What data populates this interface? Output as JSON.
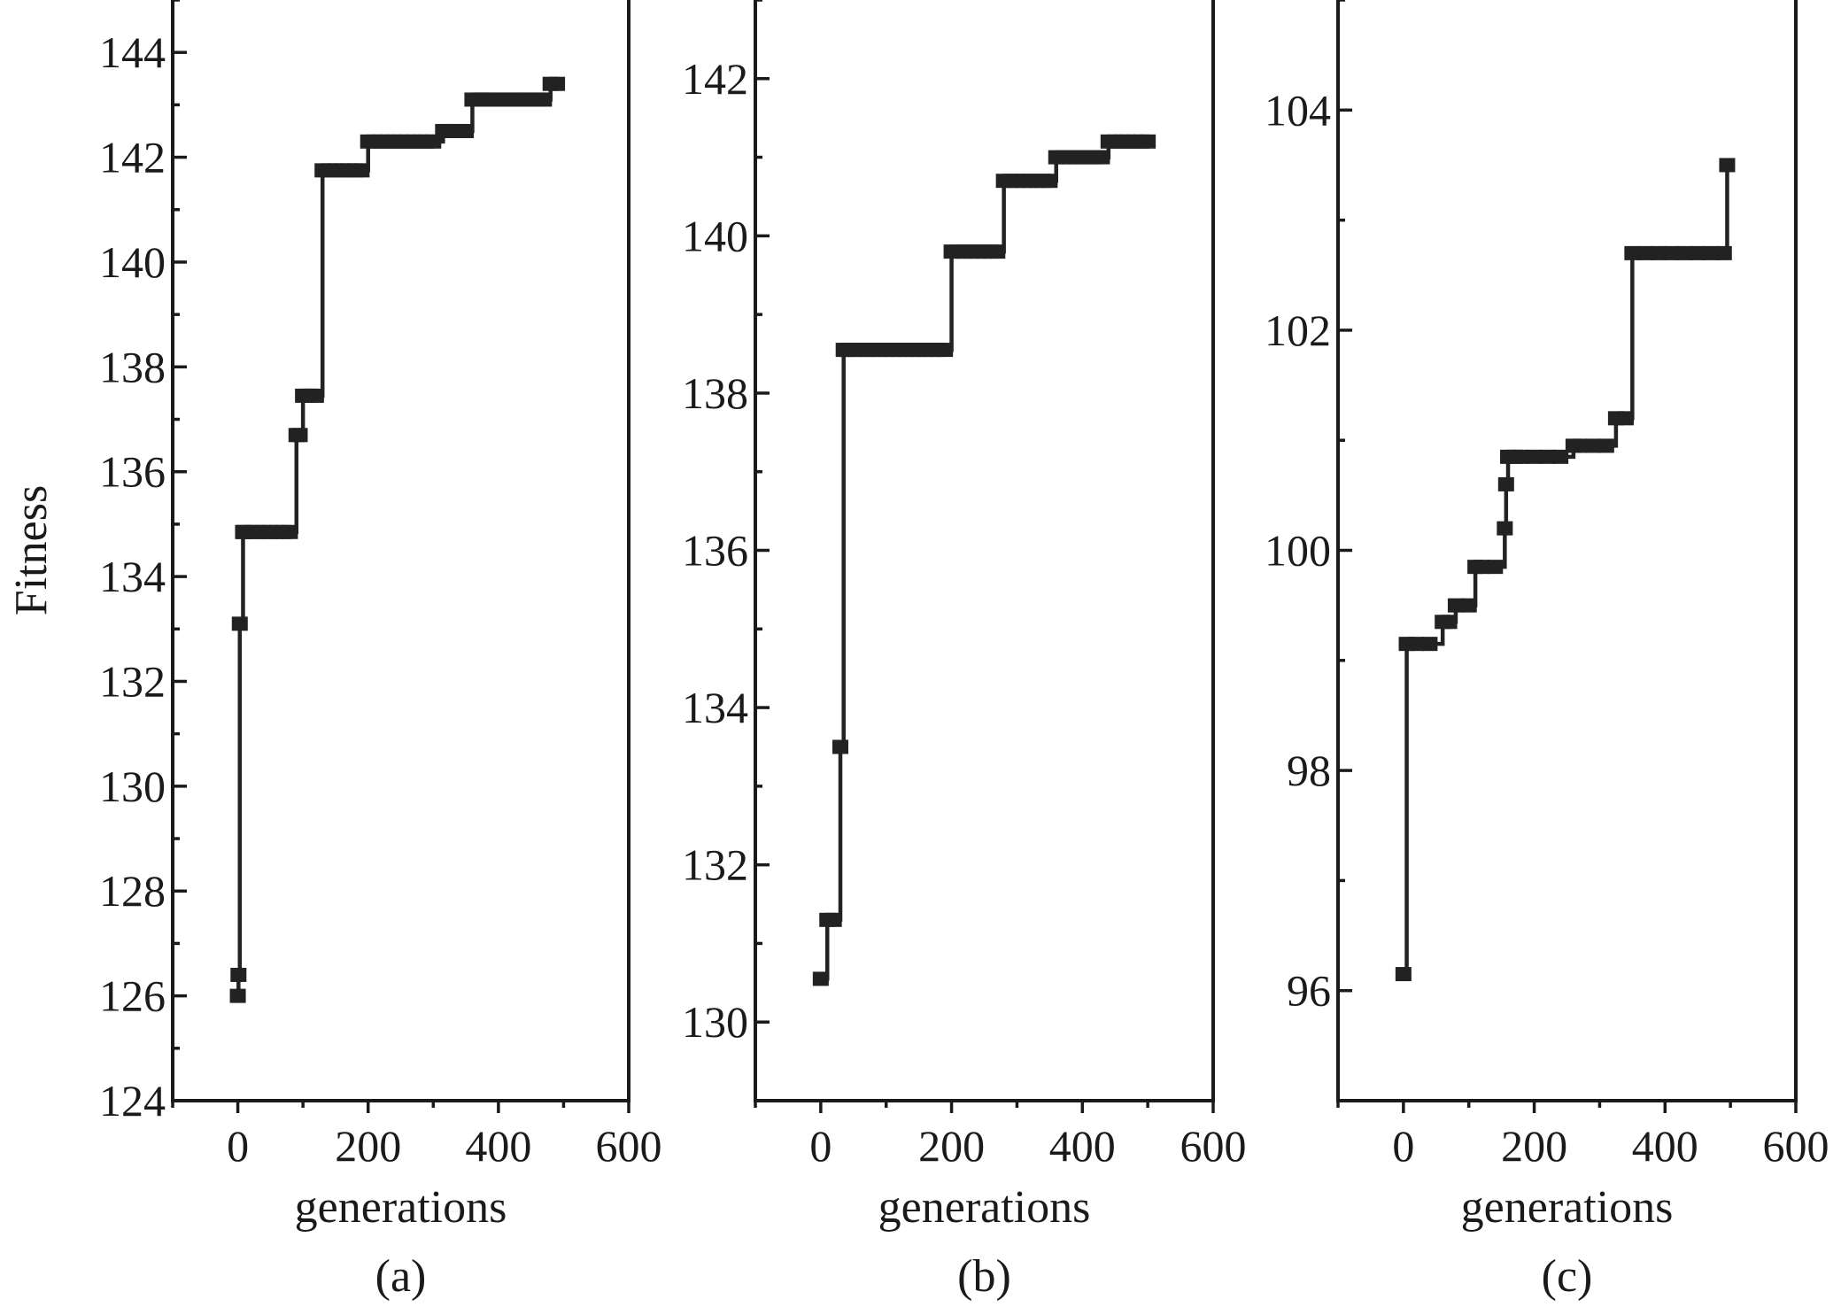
{
  "chart_data": [
    {
      "type": "line",
      "panel_label": "(a)",
      "xlabel": "generations",
      "ylabel": "Fitness",
      "xlim": [
        -100,
        600
      ],
      "ylim": [
        124,
        145
      ],
      "xticks": [
        0,
        200,
        400,
        600
      ],
      "yticks": [
        124,
        126,
        128,
        130,
        132,
        134,
        136,
        138,
        140,
        142,
        144
      ],
      "y_minor_step": 1,
      "x_minor_step": 100,
      "step": "post",
      "grid": false,
      "series": [
        {
          "x": [
            0,
            1,
            3,
            8,
            10,
            20,
            30,
            40,
            50,
            60,
            70,
            80,
            90,
            95,
            100,
            110,
            120,
            130,
            140,
            150,
            160,
            170,
            180,
            190,
            200,
            210,
            220,
            230,
            240,
            250,
            260,
            270,
            280,
            290,
            300,
            315,
            320,
            330,
            340,
            350,
            360,
            370,
            375,
            380,
            390,
            400,
            410,
            420,
            430,
            440,
            450,
            460,
            470,
            480,
            490
          ],
          "y": [
            126.0,
            126.4,
            133.1,
            134.85,
            134.85,
            134.85,
            134.85,
            134.85,
            134.85,
            134.85,
            134.85,
            134.85,
            136.7,
            136.7,
            137.45,
            137.45,
            137.45,
            141.75,
            141.75,
            141.75,
            141.75,
            141.75,
            141.75,
            141.75,
            142.3,
            142.3,
            142.3,
            142.3,
            142.3,
            142.3,
            142.3,
            142.3,
            142.3,
            142.3,
            142.3,
            142.5,
            142.5,
            142.5,
            142.5,
            142.5,
            143.1,
            143.1,
            143.1,
            143.1,
            143.1,
            143.1,
            143.1,
            143.1,
            143.1,
            143.1,
            143.1,
            143.1,
            143.1,
            143.4,
            143.4
          ]
        }
      ]
    },
    {
      "type": "line",
      "panel_label": "(b)",
      "xlabel": "generations",
      "ylabel": "",
      "xlim": [
        -100,
        600
      ],
      "ylim": [
        129,
        143
      ],
      "xticks": [
        0,
        200,
        400,
        600
      ],
      "yticks": [
        130,
        132,
        134,
        136,
        138,
        140,
        142
      ],
      "y_minor_step": 1,
      "x_minor_step": 100,
      "step": "post",
      "grid": false,
      "series": [
        {
          "x": [
            0,
            10,
            20,
            30,
            35,
            40,
            50,
            60,
            70,
            80,
            90,
            100,
            110,
            120,
            130,
            140,
            150,
            160,
            170,
            180,
            190,
            200,
            210,
            220,
            230,
            240,
            250,
            260,
            270,
            280,
            290,
            300,
            310,
            320,
            330,
            340,
            350,
            360,
            370,
            380,
            390,
            400,
            410,
            420,
            430,
            440,
            450,
            460,
            470,
            480,
            490,
            500
          ],
          "y": [
            130.55,
            131.3,
            131.3,
            133.5,
            138.55,
            138.55,
            138.55,
            138.55,
            138.55,
            138.55,
            138.55,
            138.55,
            138.55,
            138.55,
            138.55,
            138.55,
            138.55,
            138.55,
            138.55,
            138.55,
            138.55,
            139.8,
            139.8,
            139.8,
            139.8,
            139.8,
            139.8,
            139.8,
            139.8,
            140.7,
            140.7,
            140.7,
            140.7,
            140.7,
            140.7,
            140.7,
            140.7,
            141.0,
            141.0,
            141.0,
            141.0,
            141.0,
            141.0,
            141.0,
            141.0,
            141.2,
            141.2,
            141.2,
            141.2,
            141.2,
            141.2,
            141.2
          ]
        }
      ]
    },
    {
      "type": "line",
      "panel_label": "(c)",
      "xlabel": "generations",
      "ylabel": "",
      "xlim": [
        -100,
        600
      ],
      "ylim": [
        95,
        105
      ],
      "xticks": [
        0,
        200,
        400,
        600
      ],
      "yticks": [
        96,
        98,
        100,
        102,
        104
      ],
      "y_minor_step": 1,
      "x_minor_step": 100,
      "step": "post",
      "grid": false,
      "series": [
        {
          "x": [
            0,
            5,
            20,
            40,
            60,
            70,
            80,
            100,
            110,
            120,
            140,
            155,
            157,
            160,
            170,
            180,
            200,
            220,
            240,
            260,
            270,
            290,
            310,
            325,
            340,
            350,
            370,
            390,
            410,
            430,
            450,
            470,
            490,
            495
          ],
          "y": [
            96.15,
            99.15,
            99.15,
            99.15,
            99.35,
            99.35,
            99.5,
            99.5,
            99.85,
            99.85,
            99.85,
            100.2,
            100.6,
            100.85,
            100.85,
            100.85,
            100.85,
            100.85,
            100.85,
            100.95,
            100.95,
            100.95,
            100.95,
            101.2,
            101.2,
            102.7,
            102.7,
            102.7,
            102.7,
            102.7,
            102.7,
            102.7,
            102.7,
            103.5
          ]
        }
      ]
    }
  ]
}
